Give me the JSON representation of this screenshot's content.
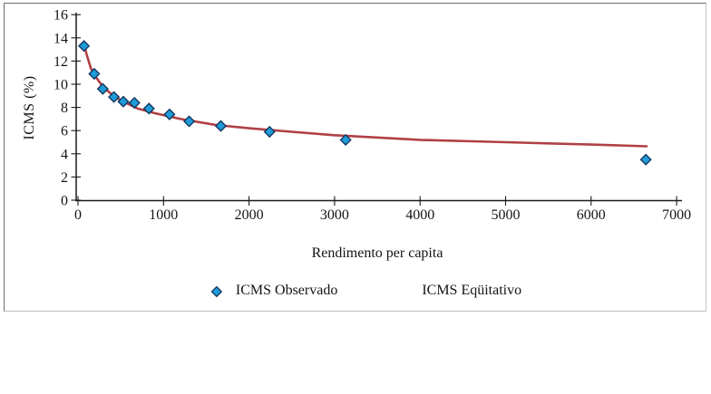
{
  "chart": {
    "y_axis_title": "ICMS (%)",
    "x_axis_title": "Rendimento per capita",
    "legend_observado": "ICMS Observado",
    "legend_equitativo": "ICMS Eqüitativo"
  },
  "colors": {
    "marker_fill": "#1e9cd8",
    "marker_border": "#15365f",
    "line": "#b04044",
    "axis": "#1a1a1a",
    "text": "#141414",
    "background": "#ffffff"
  },
  "chart_data": {
    "type": "scatter",
    "title": "",
    "xlabel": "Rendimento per capita",
    "ylabel": "ICMS (%)",
    "xlim": [
      0,
      7000
    ],
    "ylim": [
      0,
      16
    ],
    "x_ticks": [
      0,
      1000,
      2000,
      3000,
      4000,
      5000,
      6000,
      7000
    ],
    "y_ticks": [
      0,
      2,
      4,
      6,
      8,
      10,
      12,
      14,
      16
    ],
    "grid": false,
    "legend_position": "bottom",
    "series": [
      {
        "name": "ICMS Observado",
        "type": "scatter",
        "marker": "diamond",
        "marker_color": "#1e9cd8",
        "marker_border": "#15365f",
        "points": [
          [
            70,
            13.3
          ],
          [
            190,
            10.9
          ],
          [
            290,
            9.6
          ],
          [
            420,
            8.9
          ],
          [
            530,
            8.5
          ],
          [
            660,
            8.4
          ],
          [
            830,
            7.9
          ],
          [
            1070,
            7.4
          ],
          [
            1300,
            6.8
          ],
          [
            1670,
            6.4
          ],
          [
            2240,
            5.9
          ],
          [
            3130,
            5.2
          ],
          [
            6640,
            3.5
          ]
        ]
      },
      {
        "name": "ICMS Eqüitativo",
        "type": "line",
        "color": "#b04044",
        "points": [
          [
            70,
            13.5
          ],
          [
            100,
            12.6
          ],
          [
            150,
            11.4
          ],
          [
            200,
            10.7
          ],
          [
            300,
            9.7
          ],
          [
            400,
            9.1
          ],
          [
            500,
            8.6
          ],
          [
            700,
            7.9
          ],
          [
            900,
            7.5
          ],
          [
            1200,
            7.0
          ],
          [
            1600,
            6.5
          ],
          [
            2000,
            6.2
          ],
          [
            2500,
            5.9
          ],
          [
            3000,
            5.6
          ],
          [
            4000,
            5.2
          ],
          [
            5000,
            5.0
          ],
          [
            6000,
            4.8
          ],
          [
            6650,
            4.65
          ]
        ]
      }
    ]
  }
}
